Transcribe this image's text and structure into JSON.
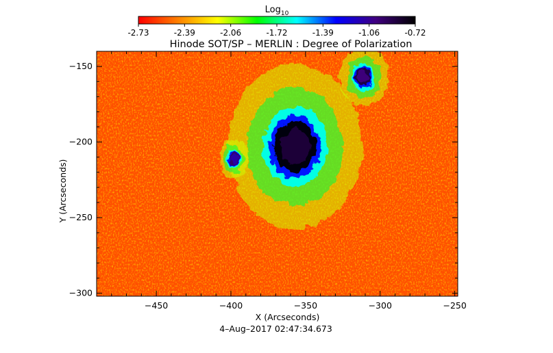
{
  "chart_data": {
    "type": "heatmap",
    "title": "Hinode SOT/SP – MERLIN : Degree of Polarization",
    "colorbar": {
      "label_base": "Log",
      "label_sub": "10",
      "ticks": [
        "-2.73",
        "-2.39",
        "-2.06",
        "-1.72",
        "-1.39",
        "-1.06",
        "-0.72"
      ],
      "min": -2.73,
      "max": -0.72,
      "colormap": [
        "#ff0000",
        "#ff8000",
        "#ffff00",
        "#00ff00",
        "#00ffff",
        "#0000ff",
        "#400080",
        "#000000"
      ]
    },
    "xlabel": "X (Arcseconds)",
    "ylabel": "Y (Arcseconds)",
    "xlim": [
      -490,
      -248
    ],
    "ylim": [
      -302,
      -140
    ],
    "xticks": [
      -450,
      -400,
      -350,
      -300,
      -250
    ],
    "yticks": [
      -150,
      -200,
      -250,
      -300
    ],
    "xtick_labels": [
      "−450",
      "−400",
      "−350",
      "−300",
      "−250"
    ],
    "ytick_labels": [
      "−150",
      "−200",
      "−250",
      "−300"
    ],
    "background_level": -2.55,
    "features": [
      {
        "kind": "sunspot",
        "x": -357,
        "y": -203,
        "rx": 14,
        "ry": 17,
        "value": -0.85
      },
      {
        "kind": "pore",
        "x": -311,
        "y": -157,
        "rx": 5,
        "ry": 6,
        "value": -1.0
      },
      {
        "kind": "pore",
        "x": -398,
        "y": -211,
        "rx": 3,
        "ry": 4,
        "value": -1.1
      }
    ],
    "timestamp": "4–Aug–2017 02:47:34.673"
  }
}
